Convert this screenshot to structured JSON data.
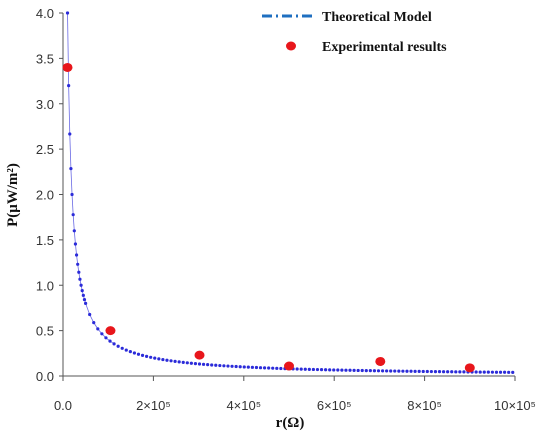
{
  "chart_data": {
    "type": "scatter",
    "xlabel": "r(Ω)",
    "ylabel": "P(μW/m²)",
    "xlim": [
      0,
      1000000
    ],
    "ylim": [
      0,
      4.0
    ],
    "x_tick_labels": [
      "0.0",
      "2×10⁵",
      "4×10⁵",
      "6×10⁵",
      "8×10⁵",
      "10×10⁵"
    ],
    "x_tick_values": [
      0,
      200000,
      400000,
      600000,
      800000,
      1000000
    ],
    "y_tick_labels": [
      "0.0",
      "0.5",
      "1.0",
      "1.5",
      "2.0",
      "2.5",
      "3.0",
      "3.5",
      "4.0"
    ],
    "y_tick_values": [
      0,
      0.5,
      1.0,
      1.5,
      2.0,
      2.5,
      3.0,
      3.5,
      4.0
    ],
    "grid": false,
    "legend_position": "top-right",
    "series": [
      {
        "name": "Theoretical Model",
        "style": "dash-dot",
        "color": "#2b2bd9",
        "curve": {
          "form": "y = k / x",
          "k": 40000,
          "x_start": 10000,
          "x_end": 1000000
        }
      },
      {
        "name": "Experimental results",
        "style": "marker",
        "color": "#e8161b",
        "points": [
          {
            "x": 10000,
            "y": 3.4
          },
          {
            "x": 105000,
            "y": 0.5
          },
          {
            "x": 302000,
            "y": 0.23
          },
          {
            "x": 500000,
            "y": 0.11
          },
          {
            "x": 702000,
            "y": 0.16
          },
          {
            "x": 900000,
            "y": 0.09
          }
        ]
      }
    ]
  }
}
